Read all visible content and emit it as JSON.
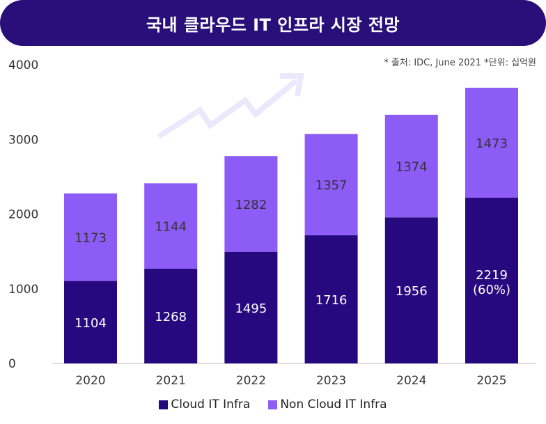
{
  "title": "국내 클라우드 IT 인프라 시장 전망",
  "source_note": "* 출처: IDC, June 2021 *단위: 십억원",
  "colors": {
    "title_bg": "#2a0f7a",
    "cloud": "#26097f",
    "non_cloud": "#8d5cf6",
    "arrow": "#ece8fb"
  },
  "chart_data": {
    "type": "bar",
    "stacked": true,
    "categories": [
      "2020",
      "2021",
      "2022",
      "2023",
      "2024",
      "2025"
    ],
    "series": [
      {
        "name": "Cloud IT Infra",
        "values": [
          1104,
          1268,
          1495,
          1716,
          1956,
          2219
        ]
      },
      {
        "name": "Non Cloud IT Infra",
        "values": [
          1173,
          1144,
          1282,
          1357,
          1374,
          1473
        ]
      }
    ],
    "lower_labels": [
      "1104",
      "1268",
      "1495",
      "1716",
      "1956",
      "2219"
    ],
    "extra_label_2025": "(60%)",
    "yticks": [
      "0",
      "1000",
      "2000",
      "3000",
      "4000"
    ],
    "ylim": [
      0,
      4000
    ],
    "grid": false,
    "legend": "bottom-center"
  },
  "legend": {
    "cloud": "Cloud IT Infra",
    "non_cloud": "Non Cloud IT Infra"
  }
}
